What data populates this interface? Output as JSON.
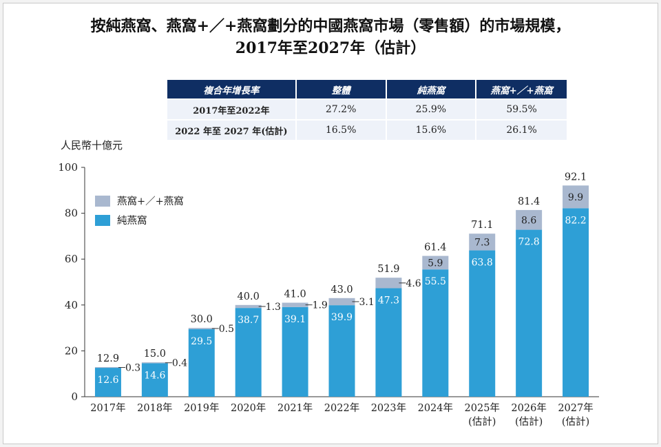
{
  "title": {
    "line1": "按純燕窩、燕窩+／+燕窩劃分的中國燕窩市場（零售額）的市場規模，",
    "line2": "2017年至2027年（估計）"
  },
  "cagr_table": {
    "header": [
      "複合年增長率",
      "整體",
      "純燕窩",
      "燕窩+／+燕窩"
    ],
    "rows": [
      [
        "2017年至2022年",
        "27.2%",
        "25.9%",
        "59.5%"
      ],
      [
        "2022 年至 2027 年(估計)",
        "16.5%",
        "15.6%",
        "26.1%"
      ]
    ],
    "header_color": "#0f2e63"
  },
  "chart_data": {
    "type": "bar",
    "stacked": true,
    "ylabel": "人民幣十億元",
    "ylim": [
      0,
      100
    ],
    "yticks": [
      0,
      20,
      40,
      60,
      80,
      100
    ],
    "grid": false,
    "legend_position": "top-left",
    "categories": [
      "2017年",
      "2018年",
      "2019年",
      "2020年",
      "2021年",
      "2022年",
      "2023年",
      "2024年",
      "2025年",
      "2026年",
      "2027年"
    ],
    "category_sublabels": [
      "",
      "",
      "",
      "",
      "",
      "",
      "",
      "",
      "(估計)",
      "(估計)",
      "(估計)"
    ],
    "totals": [
      12.9,
      15.0,
      30.0,
      40.0,
      41.0,
      43.0,
      51.9,
      61.4,
      71.1,
      81.4,
      92.1
    ],
    "series": [
      {
        "name": "純燕窩",
        "color": "#2e9fd6",
        "values": [
          12.6,
          14.6,
          29.5,
          38.7,
          39.1,
          39.9,
          47.3,
          55.5,
          63.8,
          72.8,
          82.2
        ]
      },
      {
        "name": "燕窩+／+燕窩",
        "color": "#a9b8cf",
        "values": [
          0.3,
          0.4,
          0.5,
          1.3,
          1.9,
          3.1,
          4.6,
          5.9,
          7.3,
          8.6,
          9.9
        ]
      }
    ]
  }
}
